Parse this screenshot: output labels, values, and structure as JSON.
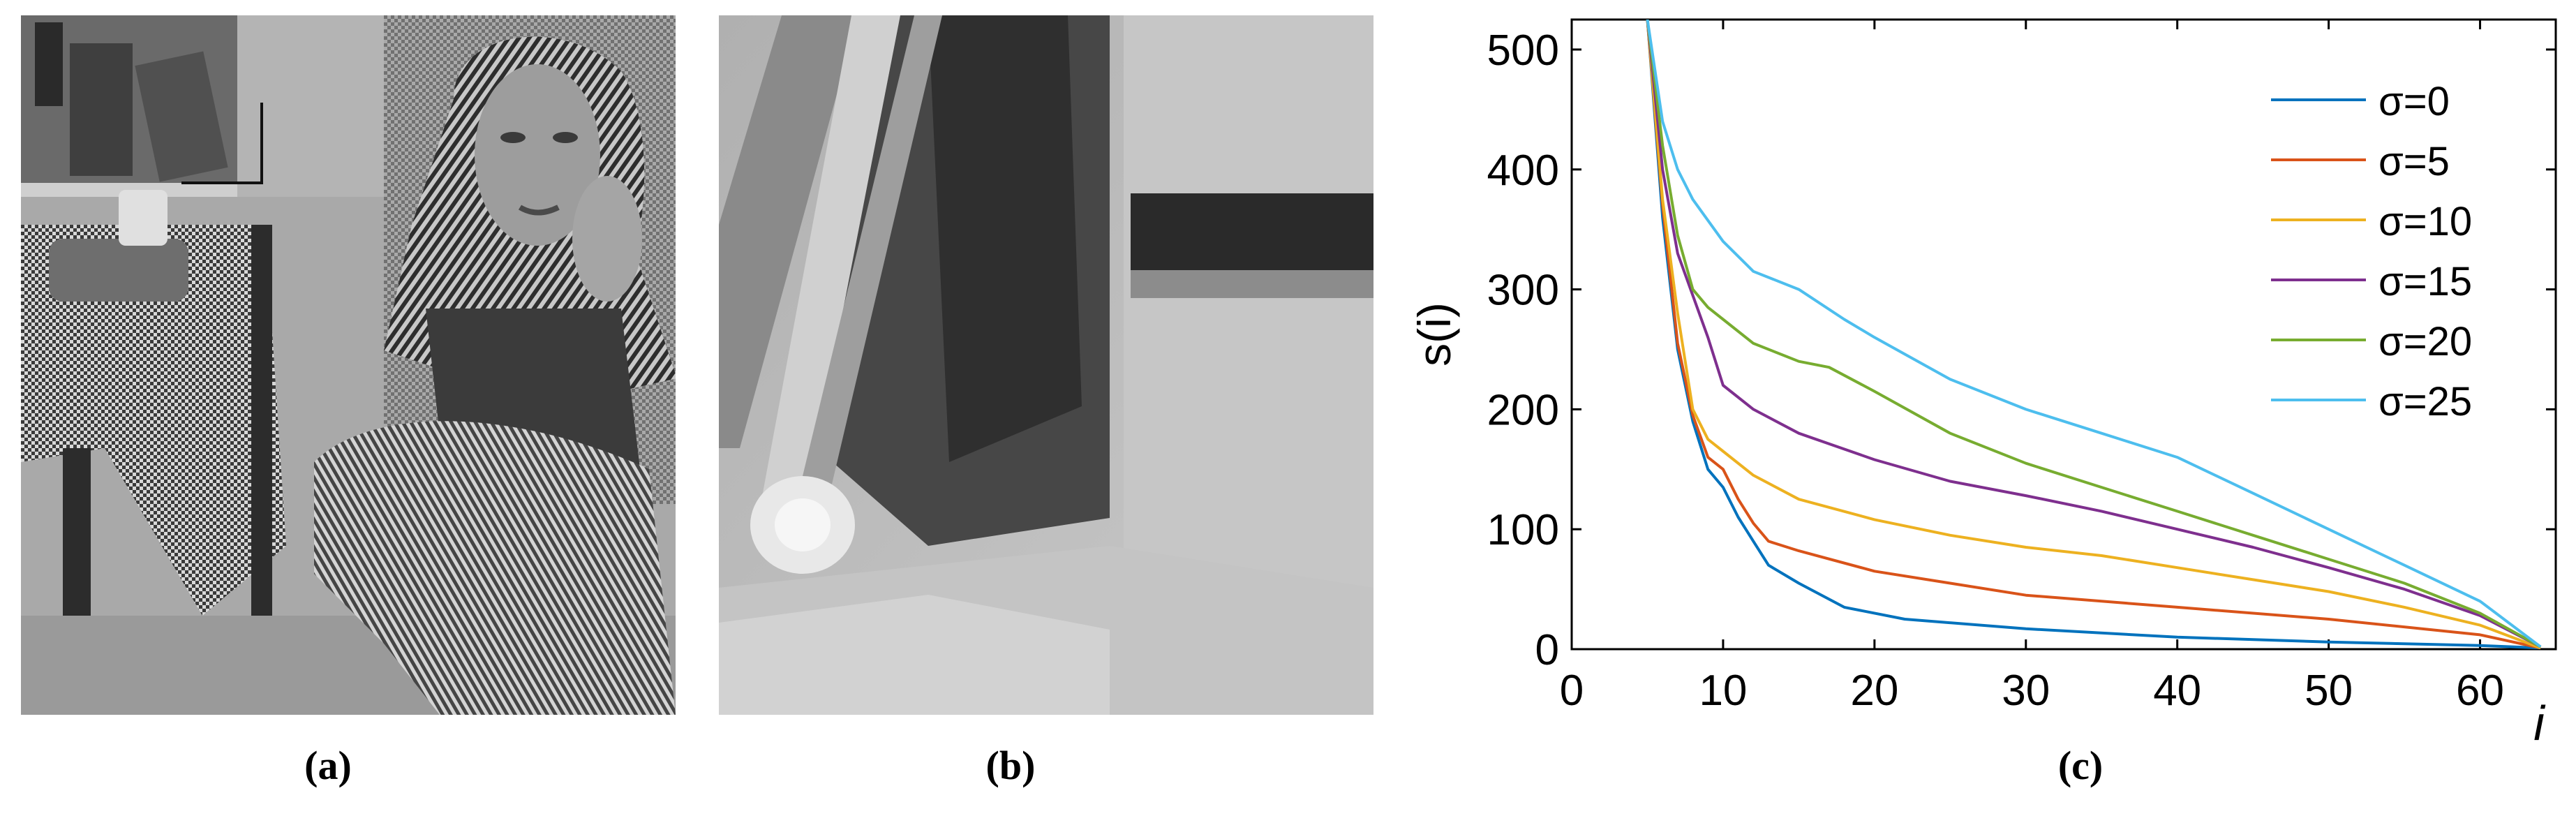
{
  "figure": {
    "panel_a": {
      "caption": "(a)",
      "image": "barbara-grayscale-photo"
    },
    "panel_b": {
      "caption": "(b)",
      "image": "zoomed-patch"
    },
    "panel_c": {
      "caption": "(c)"
    }
  },
  "chart_data": {
    "type": "line",
    "title": "",
    "xlabel": "i",
    "ylabel": "s(i)",
    "xlim": [
      0,
      65
    ],
    "ylim": [
      0,
      525
    ],
    "xticks": [
      0,
      10,
      20,
      30,
      40,
      50,
      60
    ],
    "yticks": [
      0,
      100,
      200,
      300,
      400,
      500
    ],
    "grid": false,
    "legend_position": "top-right",
    "series": [
      {
        "name": "σ=0",
        "color": "#0072BD",
        "x": [
          5,
          6,
          7,
          8,
          9,
          10,
          11,
          12,
          13,
          15,
          18,
          22,
          30,
          40,
          50,
          60,
          64
        ],
        "y": [
          525,
          360,
          250,
          190,
          150,
          135,
          110,
          90,
          70,
          55,
          35,
          25,
          17,
          10,
          6,
          3,
          1
        ]
      },
      {
        "name": "σ=5",
        "color": "#D95319",
        "x": [
          5,
          6,
          7,
          8,
          9,
          10,
          11,
          12,
          13,
          15,
          20,
          25,
          30,
          40,
          50,
          60,
          64
        ],
        "y": [
          525,
          370,
          255,
          195,
          160,
          150,
          125,
          105,
          90,
          82,
          65,
          55,
          45,
          35,
          25,
          12,
          1
        ]
      },
      {
        "name": "σ=10",
        "color": "#EDB120",
        "x": [
          5,
          6,
          7,
          8,
          9,
          10,
          12,
          15,
          20,
          25,
          30,
          35,
          40,
          45,
          50,
          55,
          60,
          64
        ],
        "y": [
          525,
          375,
          280,
          200,
          175,
          165,
          145,
          125,
          108,
          95,
          85,
          78,
          68,
          58,
          48,
          35,
          20,
          1
        ]
      },
      {
        "name": "σ=15",
        "color": "#7E2F8E",
        "x": [
          5,
          6,
          7,
          8,
          9,
          10,
          12,
          15,
          20,
          25,
          30,
          35,
          40,
          45,
          50,
          55,
          60,
          64
        ],
        "y": [
          525,
          400,
          330,
          295,
          260,
          220,
          200,
          180,
          158,
          140,
          128,
          115,
          100,
          85,
          68,
          50,
          28,
          2
        ]
      },
      {
        "name": "σ=20",
        "color": "#77AC30",
        "x": [
          5,
          6,
          7,
          8,
          9,
          10,
          12,
          15,
          17,
          20,
          25,
          30,
          35,
          40,
          45,
          50,
          55,
          60,
          64
        ],
        "y": [
          525,
          420,
          345,
          300,
          285,
          275,
          255,
          240,
          235,
          215,
          180,
          155,
          135,
          115,
          95,
          75,
          55,
          30,
          2
        ]
      },
      {
        "name": "σ=25",
        "color": "#4DBEEE",
        "x": [
          5,
          6,
          7,
          8,
          10,
          12,
          15,
          18,
          20,
          25,
          30,
          35,
          40,
          45,
          50,
          55,
          60,
          64
        ],
        "y": [
          525,
          440,
          400,
          375,
          340,
          315,
          300,
          275,
          260,
          225,
          200,
          180,
          160,
          130,
          100,
          70,
          40,
          2
        ]
      }
    ]
  }
}
